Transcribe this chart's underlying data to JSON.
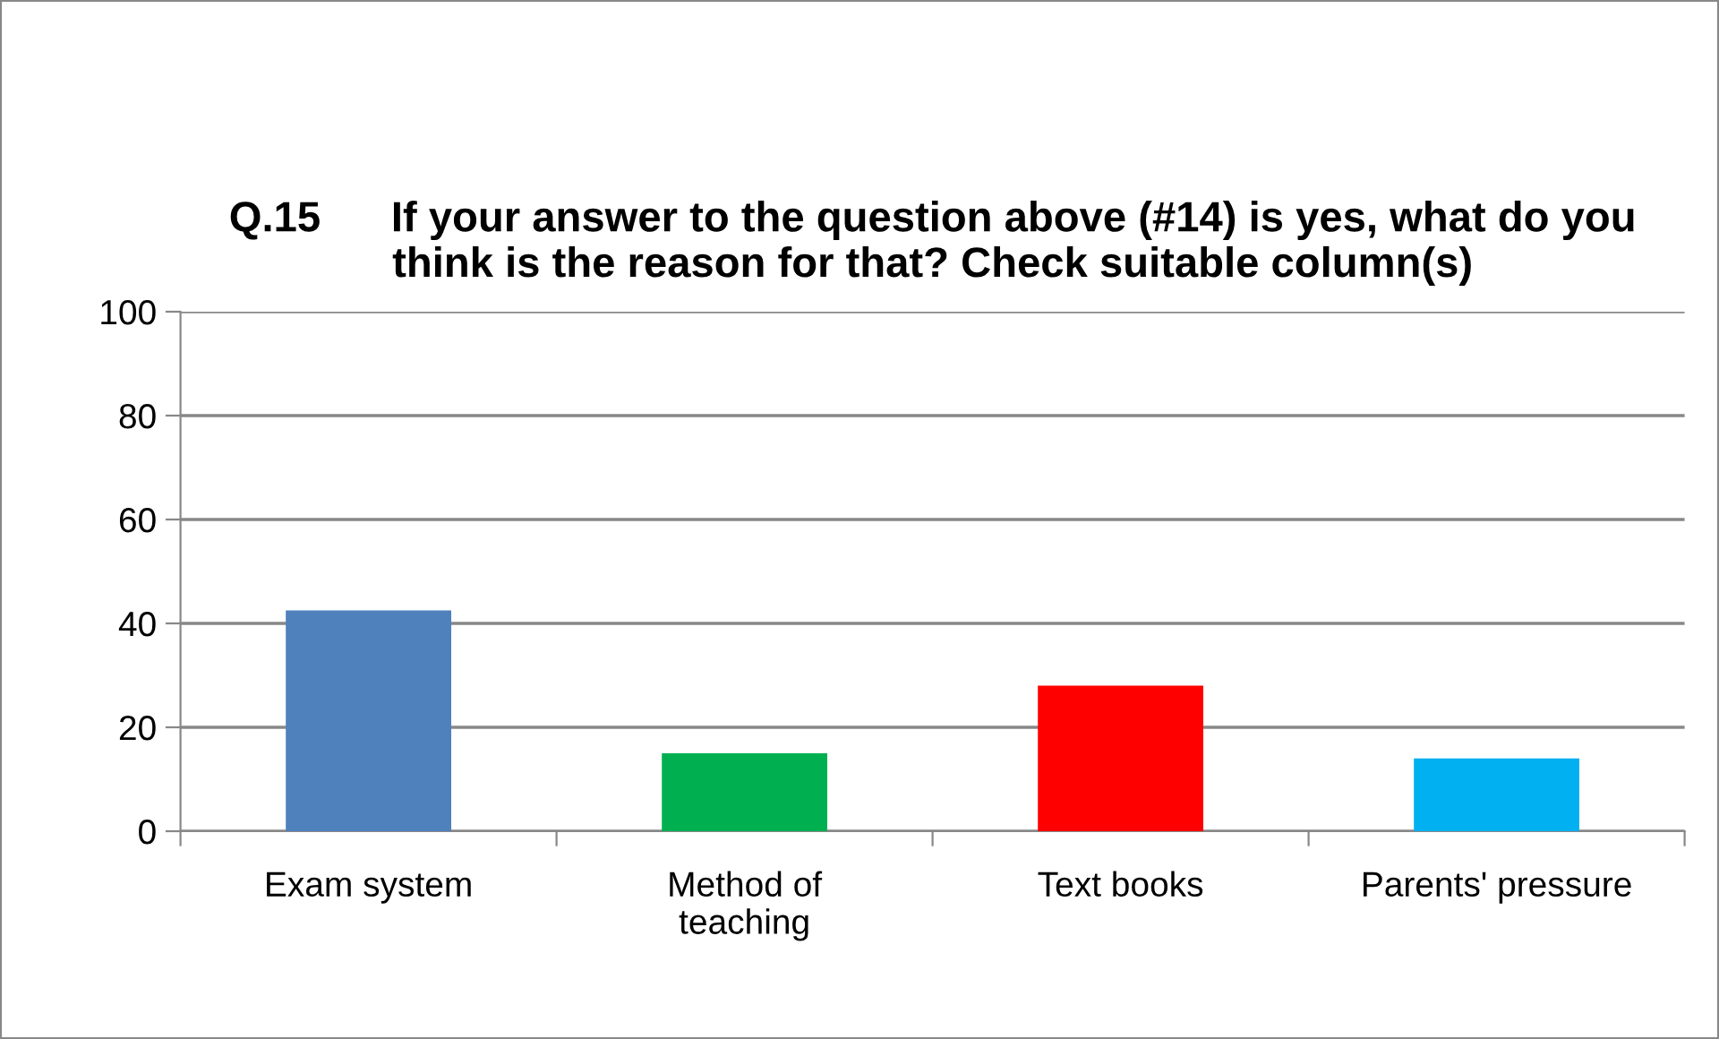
{
  "chart_data": {
    "type": "bar",
    "title": "Q.15      If your answer to the question above (#14) is yes, what do you think is the reason for that? Check suitable column(s)",
    "categories": [
      "Exam system",
      "Method of\nteaching",
      "Text books",
      "Parents' pressure"
    ],
    "values": [
      42.5,
      15,
      28,
      14
    ],
    "colors": [
      "#4f81bd",
      "#00b050",
      "#ff0000",
      "#00b0f0"
    ],
    "ylim": [
      0,
      100
    ],
    "yticks": [
      0,
      20,
      40,
      60,
      80,
      100
    ],
    "grid": "y"
  }
}
